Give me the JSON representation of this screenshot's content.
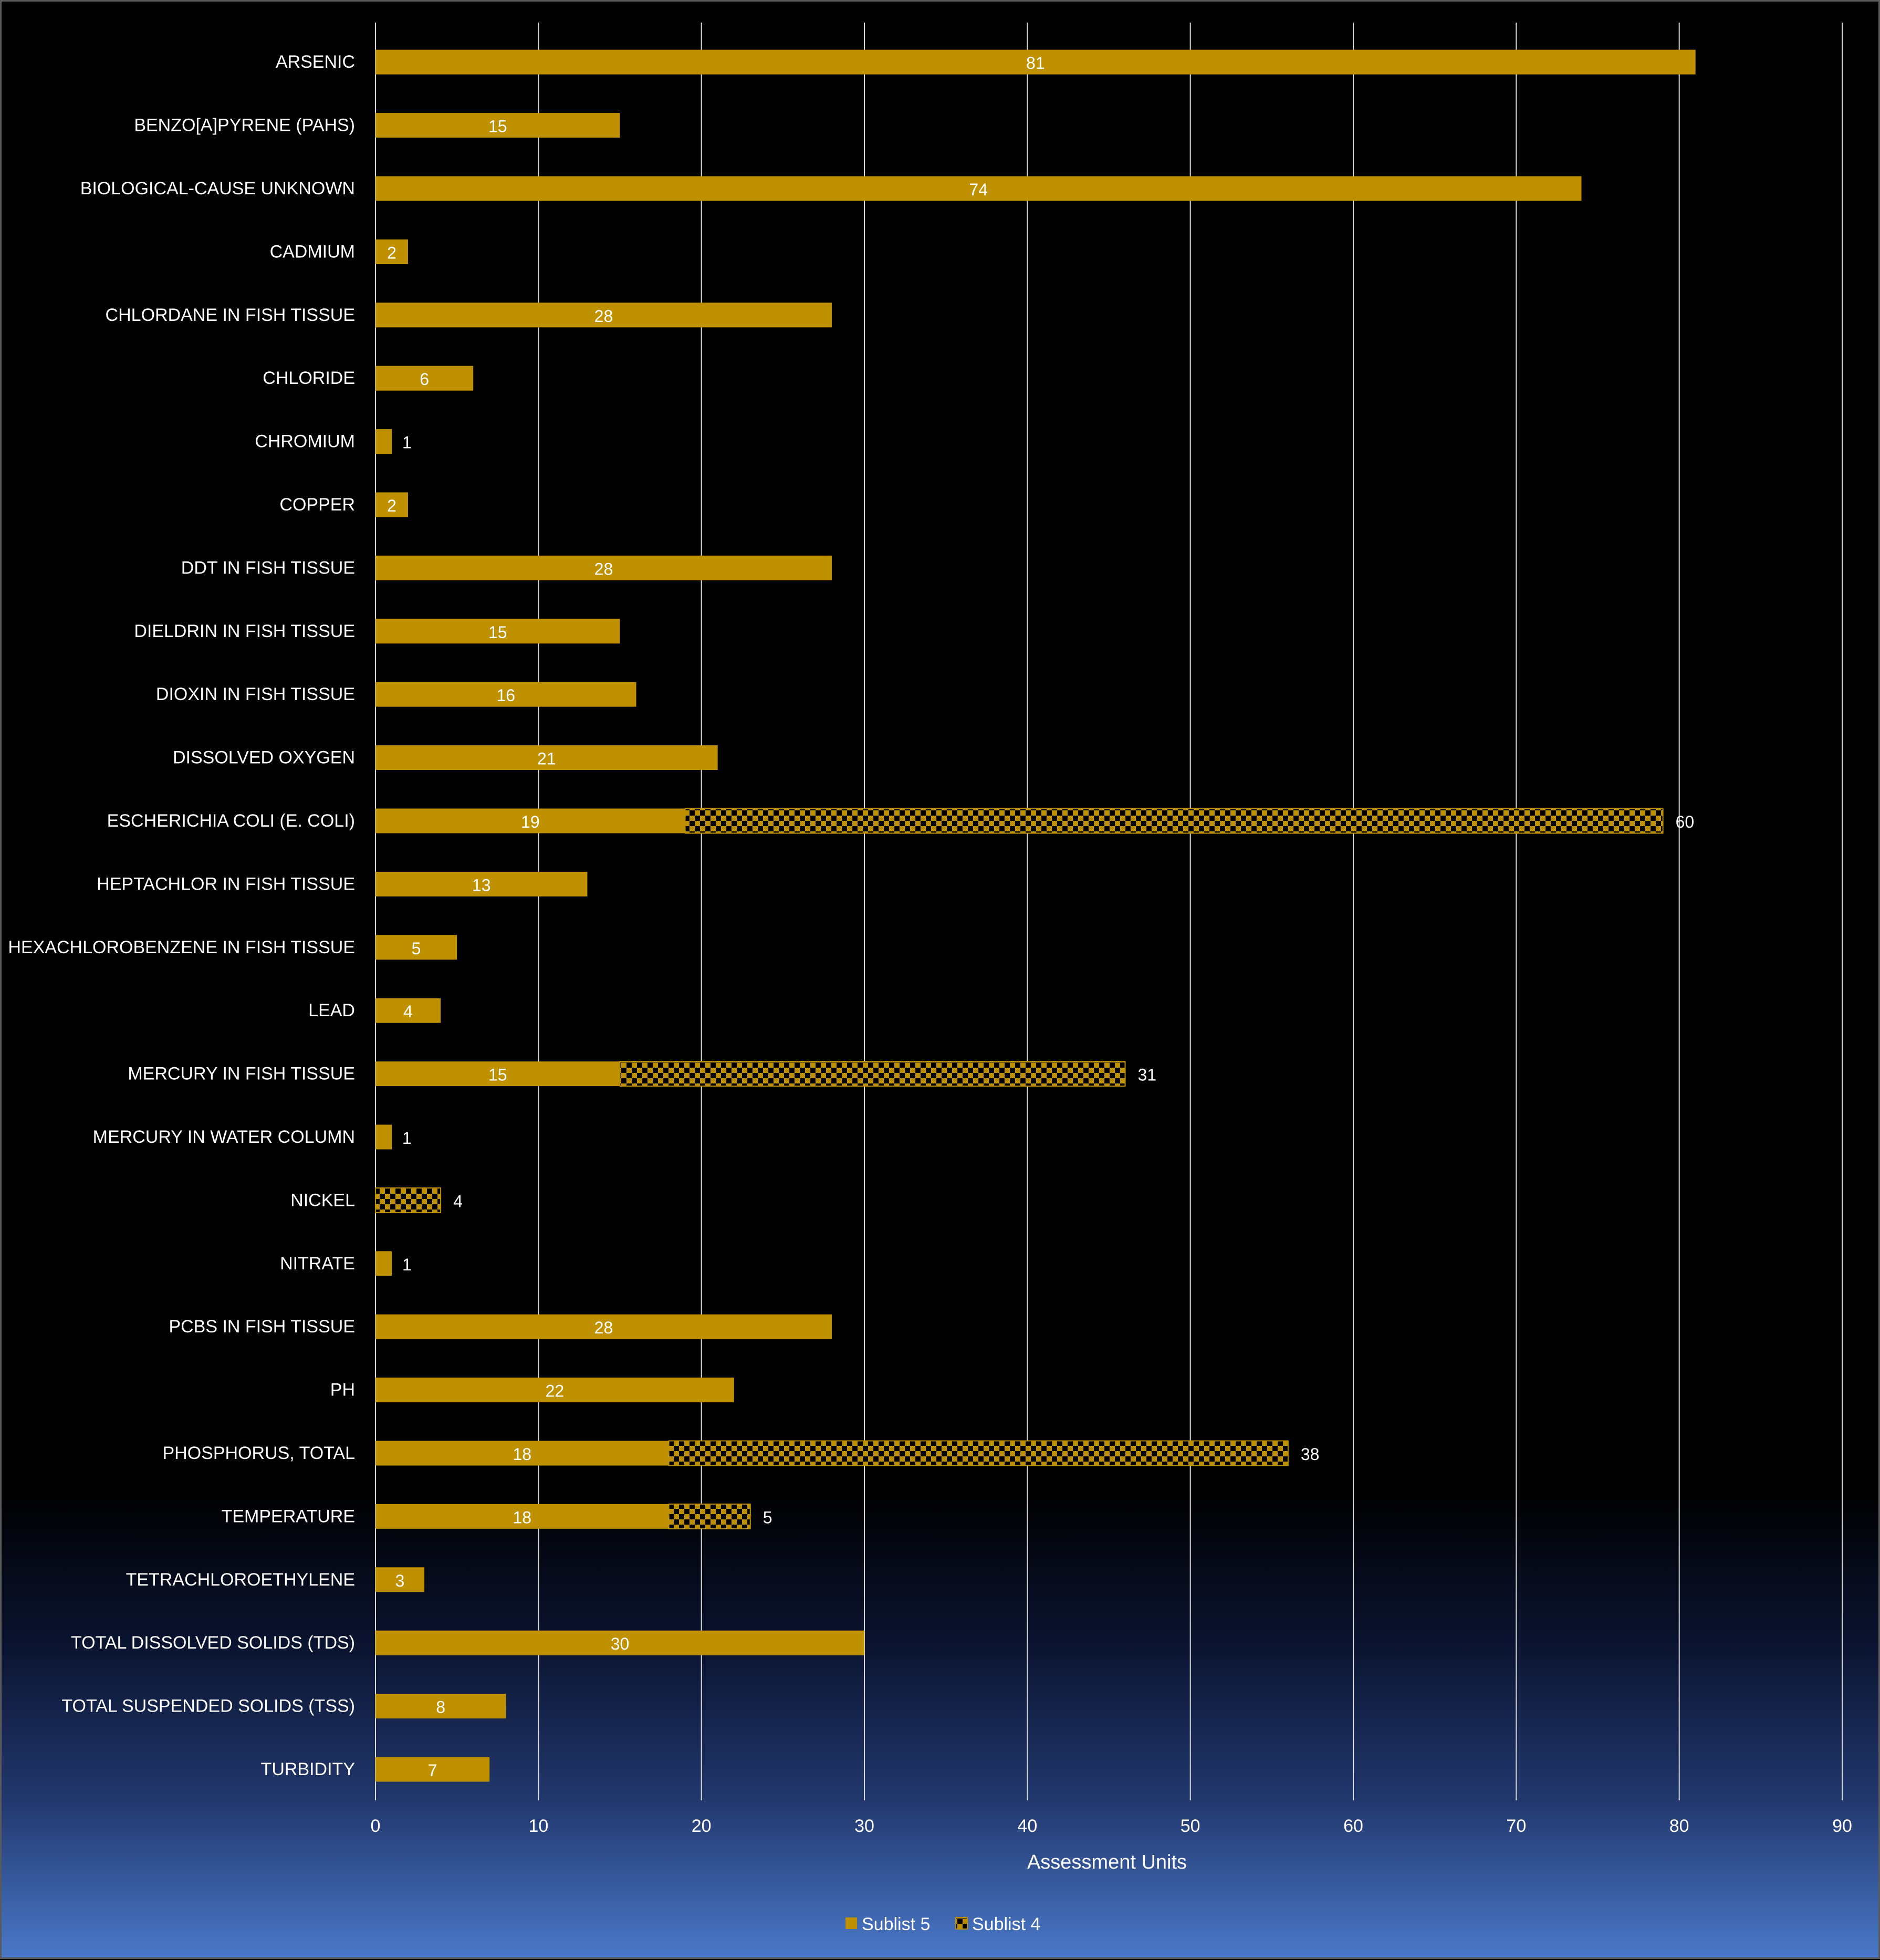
{
  "chart_data": {
    "type": "bar",
    "orientation": "horizontal",
    "stacked": true,
    "title": "",
    "xlabel": "Assessment Units",
    "ylabel": "",
    "xlim": [
      0,
      90
    ],
    "x_ticks": [
      0,
      10,
      20,
      30,
      40,
      50,
      60,
      70,
      80,
      90
    ],
    "grid": "vertical",
    "legend_position": "bottom",
    "categories": [
      "ARSENIC",
      "BENZO[A]PYRENE (PAHS)",
      "BIOLOGICAL-CAUSE UNKNOWN",
      "CADMIUM",
      "CHLORDANE IN FISH TISSUE",
      "CHLORIDE",
      "CHROMIUM",
      "COPPER",
      "DDT IN FISH TISSUE",
      "DIELDRIN IN FISH TISSUE",
      "DIOXIN IN FISH TISSUE",
      "DISSOLVED OXYGEN",
      "ESCHERICHIA COLI (E. COLI)",
      "HEPTACHLOR IN FISH TISSUE",
      "HEXACHLOROBENZENE IN FISH TISSUE",
      "LEAD",
      "MERCURY IN FISH TISSUE",
      "MERCURY IN WATER COLUMN",
      "NICKEL",
      "NITRATE",
      "PCBS IN FISH TISSUE",
      "PH",
      "PHOSPHORUS, TOTAL",
      "TEMPERATURE",
      "TETRACHLOROETHYLENE",
      "TOTAL DISSOLVED SOLIDS (TDS)",
      "TOTAL SUSPENDED SOLIDS (TSS)",
      "TURBIDITY"
    ],
    "series": [
      {
        "name": "Sublist 5",
        "pattern": "solid",
        "color": "#bf9000",
        "values": [
          81,
          15,
          74,
          2,
          28,
          6,
          1,
          2,
          28,
          15,
          16,
          21,
          19,
          13,
          5,
          4,
          15,
          1,
          null,
          1,
          28,
          22,
          18,
          18,
          3,
          30,
          8,
          7
        ]
      },
      {
        "name": "Sublist 4",
        "pattern": "checkerboard",
        "color": "#bf9000",
        "values": [
          null,
          null,
          null,
          null,
          null,
          null,
          null,
          null,
          null,
          null,
          null,
          null,
          60,
          null,
          null,
          null,
          31,
          null,
          4,
          null,
          null,
          null,
          38,
          5,
          null,
          null,
          null,
          null
        ]
      }
    ]
  },
  "colors": {
    "bar": "#bf9000",
    "label_on_bar": "#ffffff",
    "text": "#ffffff",
    "grid": "#d9d9d9"
  }
}
